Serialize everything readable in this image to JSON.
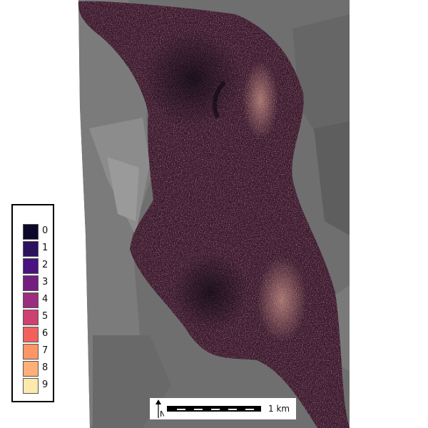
{
  "map": {
    "legend": {
      "items": [
        {
          "label": "0",
          "color": "#0d0829"
        },
        {
          "label": "1",
          "color": "#2c115f"
        },
        {
          "label": "2",
          "color": "#4a1180"
        },
        {
          "label": "3",
          "color": "#721f81"
        },
        {
          "label": "4",
          "color": "#9c2e7f"
        },
        {
          "label": "5",
          "color": "#cd4071"
        },
        {
          "label": "6",
          "color": "#f1605d"
        },
        {
          "label": "7",
          "color": "#fd9567"
        },
        {
          "label": "8",
          "color": "#feb078"
        },
        {
          "label": "9",
          "color": "#fde9ae"
        }
      ]
    },
    "scalebar": {
      "label": "1 km",
      "north_label": "N"
    },
    "colors": {
      "background_gray": "#737373",
      "page_white": "#ffffff"
    }
  }
}
